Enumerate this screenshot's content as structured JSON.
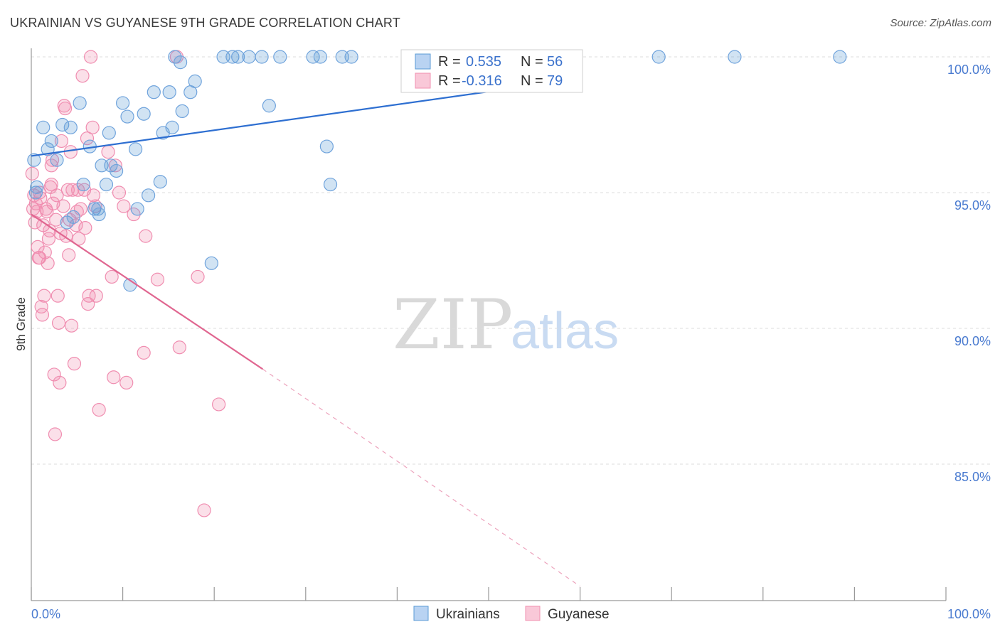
{
  "header": {
    "title": "UKRAINIAN VS GUYANESE 9TH GRADE CORRELATION CHART",
    "source": "Source: ZipAtlas.com"
  },
  "watermark": {
    "zip": "ZIP",
    "atlas": "atlas"
  },
  "colors": {
    "blue": "#5b9bd5",
    "blue_line": "#2e6fd1",
    "pink": "#f191b0",
    "pink_line": "#e06690",
    "axis_text": "#4a7bd0",
    "grid": "#dddddd"
  },
  "legend": {
    "r_label": "R =",
    "n_label": "N =",
    "rows": [
      {
        "series": "Ukrainians",
        "r": "0.535",
        "n": "56"
      },
      {
        "series": "Guyanese",
        "r": "-0.316",
        "n": "79"
      }
    ]
  },
  "chart_data": {
    "type": "scatter",
    "xlabel": "",
    "ylabel": "9th Grade",
    "xlim": [
      0,
      100
    ],
    "ylim": [
      80.5,
      100.6
    ],
    "x_tick_labels": [
      "0.0%",
      "100.0%"
    ],
    "y_ticks": [
      85,
      90,
      95,
      100
    ],
    "y_tick_labels": [
      "85.0%",
      "90.0%",
      "95.0%",
      "100.0%"
    ],
    "series": [
      {
        "name": "Ukrainians",
        "color": "#5b9bd5",
        "trend": {
          "x0": 0,
          "y0": 96.35,
          "x1": 57,
          "y1": 99.05
        },
        "points": [
          [
            0.3,
            96.2
          ],
          [
            0.5,
            95.0
          ],
          [
            0.6,
            95.2
          ],
          [
            1.3,
            97.4
          ],
          [
            1.8,
            96.6
          ],
          [
            2.2,
            96.9
          ],
          [
            2.8,
            96.2
          ],
          [
            3.4,
            97.5
          ],
          [
            3.9,
            93.9
          ],
          [
            4.3,
            97.4
          ],
          [
            4.6,
            94.1
          ],
          [
            5.3,
            98.3
          ],
          [
            5.7,
            95.3
          ],
          [
            6.4,
            96.7
          ],
          [
            6.9,
            94.4
          ],
          [
            7.3,
            94.4
          ],
          [
            7.4,
            94.2
          ],
          [
            7.7,
            96.0
          ],
          [
            8.2,
            95.3
          ],
          [
            8.5,
            97.2
          ],
          [
            8.7,
            96.0
          ],
          [
            9.3,
            95.8
          ],
          [
            10.0,
            98.3
          ],
          [
            10.5,
            97.8
          ],
          [
            10.8,
            91.6
          ],
          [
            11.4,
            96.6
          ],
          [
            11.6,
            94.4
          ],
          [
            12.3,
            97.9
          ],
          [
            12.8,
            94.9
          ],
          [
            13.4,
            98.7
          ],
          [
            14.1,
            95.4
          ],
          [
            14.4,
            97.2
          ],
          [
            15.1,
            98.7
          ],
          [
            15.4,
            97.4
          ],
          [
            15.7,
            100.0
          ],
          [
            16.3,
            99.8
          ],
          [
            16.5,
            98.0
          ],
          [
            17.4,
            98.7
          ],
          [
            17.9,
            99.1
          ],
          [
            19.7,
            92.4
          ],
          [
            21.0,
            100.0
          ],
          [
            22.0,
            100.0
          ],
          [
            22.6,
            100.0
          ],
          [
            23.8,
            100.0
          ],
          [
            25.2,
            100.0
          ],
          [
            26.0,
            98.2
          ],
          [
            27.2,
            100.0
          ],
          [
            30.8,
            100.0
          ],
          [
            31.6,
            100.0
          ],
          [
            32.3,
            96.7
          ],
          [
            32.7,
            95.3
          ],
          [
            34.0,
            100.0
          ],
          [
            35.0,
            100.0
          ],
          [
            68.6,
            100.0
          ],
          [
            76.9,
            100.0
          ],
          [
            88.4,
            100.0
          ]
        ]
      },
      {
        "name": "Guyanese",
        "color": "#f191b0",
        "trend": {
          "x0": 0,
          "y0": 94.2,
          "x1": 25.3,
          "y1": 88.5,
          "dash_x1": 60,
          "dash_y1": 80.5
        },
        "points": [
          [
            0.1,
            95.7
          ],
          [
            0.2,
            94.4
          ],
          [
            0.3,
            94.9
          ],
          [
            0.4,
            93.9
          ],
          [
            0.5,
            94.6
          ],
          [
            0.6,
            94.3
          ],
          [
            0.7,
            93.0
          ],
          [
            0.8,
            92.6
          ],
          [
            0.9,
            92.6
          ],
          [
            1.0,
            94.8
          ],
          [
            1.1,
            90.8
          ],
          [
            1.2,
            90.5
          ],
          [
            1.3,
            93.8
          ],
          [
            1.4,
            91.2
          ],
          [
            1.5,
            92.8
          ],
          [
            1.6,
            94.4
          ],
          [
            1.8,
            92.4
          ],
          [
            1.9,
            93.3
          ],
          [
            2.0,
            93.6
          ],
          [
            2.1,
            95.2
          ],
          [
            2.2,
            95.3
          ],
          [
            2.3,
            96.2
          ],
          [
            2.4,
            94.6
          ],
          [
            2.5,
            88.3
          ],
          [
            2.6,
            86.1
          ],
          [
            2.7,
            94.0
          ],
          [
            2.8,
            94.9
          ],
          [
            2.9,
            91.2
          ],
          [
            3.0,
            90.2
          ],
          [
            3.1,
            88.0
          ],
          [
            3.2,
            93.5
          ],
          [
            3.3,
            96.9
          ],
          [
            3.5,
            94.5
          ],
          [
            3.6,
            98.2
          ],
          [
            3.7,
            98.1
          ],
          [
            3.8,
            93.4
          ],
          [
            4.0,
            95.1
          ],
          [
            4.1,
            92.7
          ],
          [
            4.2,
            94.0
          ],
          [
            4.3,
            96.5
          ],
          [
            4.4,
            90.1
          ],
          [
            4.5,
            95.1
          ],
          [
            4.7,
            88.7
          ],
          [
            4.9,
            93.8
          ],
          [
            5.0,
            94.3
          ],
          [
            5.1,
            95.1
          ],
          [
            5.2,
            93.3
          ],
          [
            5.4,
            94.4
          ],
          [
            5.6,
            99.3
          ],
          [
            5.8,
            95.1
          ],
          [
            5.9,
            93.7
          ],
          [
            6.1,
            97.0
          ],
          [
            6.2,
            90.9
          ],
          [
            6.3,
            91.2
          ],
          [
            6.5,
            100.0
          ],
          [
            6.7,
            97.4
          ],
          [
            6.8,
            94.9
          ],
          [
            7.0,
            94.5
          ],
          [
            7.1,
            91.2
          ],
          [
            7.4,
            87.0
          ],
          [
            8.4,
            96.5
          ],
          [
            8.8,
            91.9
          ],
          [
            9.0,
            88.2
          ],
          [
            9.2,
            96.0
          ],
          [
            9.6,
            95.0
          ],
          [
            10.1,
            94.5
          ],
          [
            10.4,
            88.0
          ],
          [
            11.2,
            94.2
          ],
          [
            12.3,
            89.1
          ],
          [
            12.5,
            93.4
          ],
          [
            13.8,
            91.8
          ],
          [
            15.9,
            100.0
          ],
          [
            16.2,
            89.3
          ],
          [
            18.2,
            91.9
          ],
          [
            18.9,
            83.3
          ],
          [
            20.5,
            87.2
          ],
          [
            2.2,
            96.0
          ],
          [
            1.7,
            94.3
          ],
          [
            0.9,
            95.0
          ]
        ]
      }
    ]
  }
}
